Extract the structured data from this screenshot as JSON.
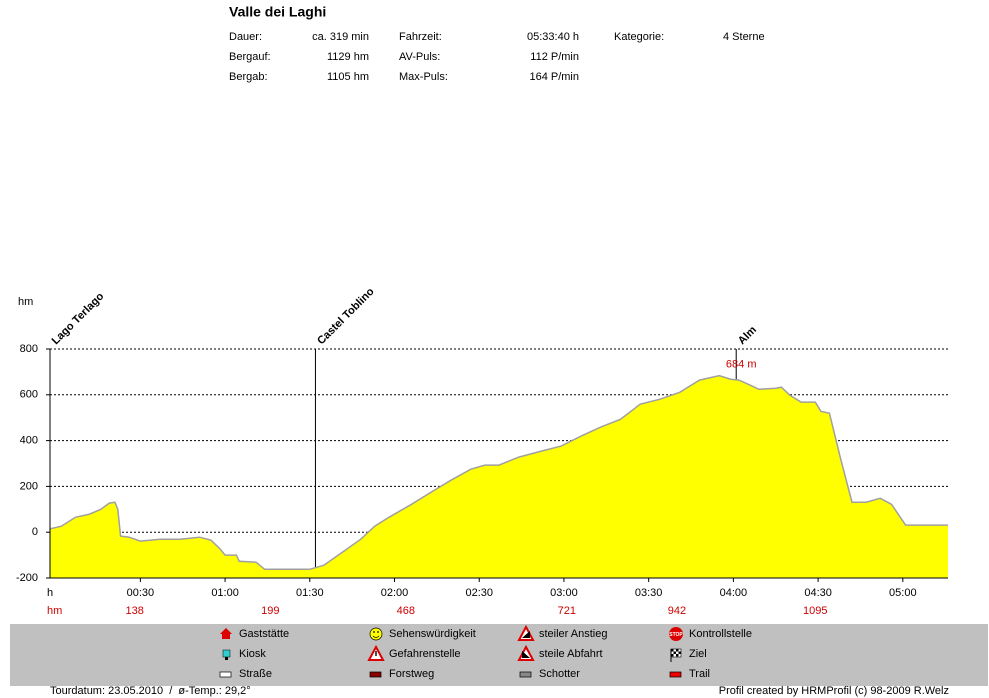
{
  "header": {
    "title": "Valle dei Laghi",
    "stats": [
      [
        "Dauer:",
        "ca. 319 min",
        "Fahrzeit:",
        "05:33:40 h",
        "Kategorie:",
        "4 Sterne"
      ],
      [
        "Bergauf:",
        "1129 hm",
        "AV-Puls:",
        "112 P/min"
      ],
      [
        "Bergab:",
        "1105 hm",
        "Max-Puls:",
        "164 P/min"
      ]
    ]
  },
  "chart_data": {
    "type": "area",
    "y_label": "hm",
    "x_label": "h",
    "color": "#ffff00",
    "x": [
      -2,
      2,
      7,
      12,
      16,
      19,
      21,
      22,
      23,
      26,
      30,
      37,
      44,
      51,
      55,
      58,
      60,
      64,
      65,
      71,
      74,
      83,
      90,
      95,
      101,
      108,
      113,
      118,
      126,
      133,
      140,
      147,
      152,
      157,
      164,
      172,
      179,
      186,
      193,
      200,
      207,
      214,
      221,
      228,
      235,
      239,
      242,
      246,
      249,
      255,
      257,
      260,
      264,
      269,
      271,
      274,
      278,
      282,
      287,
      292,
      296,
      301,
      316
    ],
    "values": [
      15,
      26,
      65,
      79,
      100,
      127,
      131,
      100,
      -17,
      -22,
      -39,
      -31,
      -31,
      -22,
      -35,
      -70,
      -100,
      -100,
      -127,
      -131,
      -162,
      -162,
      -162,
      -144,
      -92,
      -31,
      26,
      65,
      122,
      175,
      227,
      275,
      293,
      293,
      328,
      354,
      376,
      419,
      459,
      493,
      559,
      581,
      611,
      664,
      684,
      668,
      664,
      642,
      624,
      629,
      633,
      598,
      568,
      568,
      528,
      520,
      319,
      131,
      131,
      148,
      122,
      31,
      31
    ],
    "xlim": [
      -2,
      316
    ],
    "ylim": [
      -200,
      800
    ],
    "yticks": [
      -200,
      0,
      200,
      400,
      600,
      800
    ],
    "xticks": [
      {
        "value": 30,
        "label": "00:30"
      },
      {
        "value": 60,
        "label": "01:00"
      },
      {
        "value": 90,
        "label": "01:30"
      },
      {
        "value": 120,
        "label": "02:00"
      },
      {
        "value": 150,
        "label": "02:30"
      },
      {
        "value": 180,
        "label": "03:00"
      },
      {
        "value": 210,
        "label": "03:30"
      },
      {
        "value": 240,
        "label": "04:00"
      },
      {
        "value": 270,
        "label": "04:30"
      },
      {
        "value": 300,
        "label": "05:00"
      }
    ],
    "grid": true,
    "waypoints": [
      {
        "name": "Lago Terlago",
        "x": -2
      },
      {
        "name": "Castel Toblino",
        "x": 92
      },
      {
        "name": "Alm",
        "x": 241
      }
    ],
    "peak": {
      "x": 241,
      "value": 684,
      "label": "684 m"
    },
    "climb_label": "hm",
    "climbs": [
      {
        "x": 28,
        "value": 138
      },
      {
        "x": 76,
        "value": 199
      },
      {
        "x": 124,
        "value": 468
      },
      {
        "x": 181,
        "value": 721
      },
      {
        "x": 220,
        "value": 942
      },
      {
        "x": 269,
        "value": 1095
      }
    ]
  },
  "legend": {
    "items": [
      [
        "Gaststätte",
        "Kiosk",
        "Straße"
      ],
      [
        "Sehenswürdigkeit",
        "Gefahrenstelle",
        "Forstweg"
      ],
      [
        "steiler Anstieg",
        "steile Abfahrt",
        "Schotter"
      ],
      [
        "Kontrollstelle",
        "Ziel",
        "Trail"
      ]
    ]
  },
  "footer": {
    "left": "Tourdatum: 23.05.2010  /  ø-Temp.: 29,2°",
    "right": "Profil created by HRMProfil (c) 98-2009 R.Welz"
  }
}
